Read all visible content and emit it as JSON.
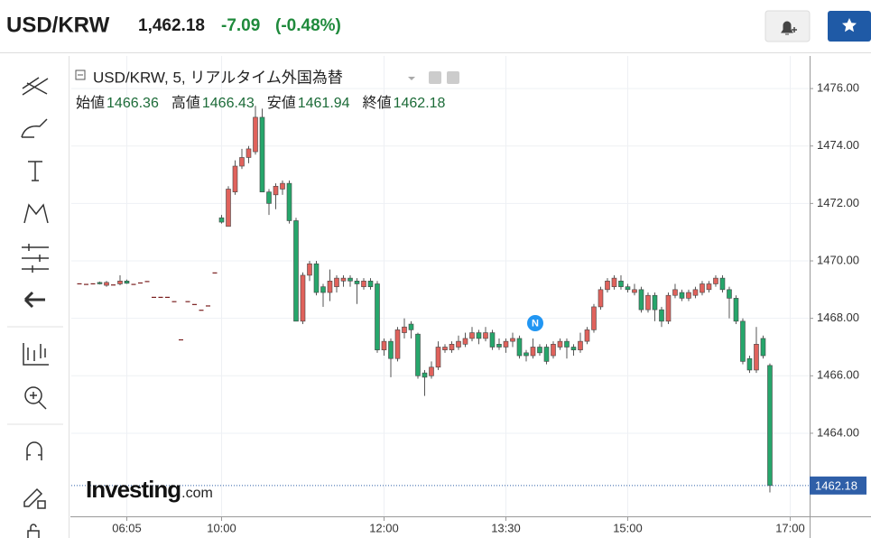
{
  "header": {
    "symbol": "USD/KRW",
    "price": "1,462.18",
    "change": "-7.09",
    "change_pct": "(-0.48%)"
  },
  "watermark": {
    "brand": "Investing",
    "suffix": ".com"
  },
  "news_marker": "N",
  "chart_data": {
    "type": "candlestick",
    "title": "USD/KRW, 5, リアルタイム外国為替",
    "up_color": "#e0625c",
    "down_color": "#26a66b",
    "x": [
      0,
      1,
      2,
      3,
      4,
      5,
      6,
      7,
      8,
      9,
      10,
      11,
      12,
      13,
      14,
      15,
      16,
      17,
      18,
      19,
      20,
      21,
      22,
      23,
      24,
      25,
      26,
      27,
      28,
      29,
      30,
      31,
      32,
      33,
      34,
      35,
      36,
      37,
      38,
      39,
      40,
      41,
      42,
      43,
      44,
      45,
      46,
      47,
      48,
      49,
      50,
      51,
      52,
      53,
      54,
      55,
      56,
      57,
      58,
      59,
      60,
      61,
      62,
      63,
      64,
      65,
      66,
      67,
      68,
      69,
      70,
      71,
      72,
      73,
      74,
      75,
      76,
      77,
      78,
      79,
      80,
      81,
      82,
      83,
      84,
      85,
      86,
      87,
      88,
      89,
      90,
      91,
      92,
      93,
      94,
      95,
      96,
      97,
      98,
      99,
      100,
      101,
      102
    ],
    "xlim": [
      -1.2,
      107.87
    ],
    "xticks": [
      {
        "value": 7,
        "label": "06:05"
      },
      {
        "value": 21,
        "label": "10:00"
      },
      {
        "value": 45,
        "label": "12:00"
      },
      {
        "value": 63,
        "label": "13:30"
      },
      {
        "value": 81,
        "label": "15:00"
      },
      {
        "value": 105,
        "label": "17:00"
      }
    ],
    "ylim": [
      1461.17,
      1477.04
    ],
    "yticks": [
      {
        "value": 1464,
        "label": "1464.00"
      },
      {
        "value": 1466,
        "label": "1466.00"
      },
      {
        "value": 1468,
        "label": "1468.00"
      },
      {
        "value": 1470,
        "label": "1470.00"
      },
      {
        "value": 1472,
        "label": "1472.00"
      },
      {
        "value": 1474,
        "label": "1474.00"
      },
      {
        "value": 1476,
        "label": "1476.00"
      }
    ],
    "grid": true,
    "series": [
      {
        "name": "始値",
        "values": [
          1469.22,
          1469.2,
          1469.22,
          1469.25,
          1469.15,
          1469.18,
          1469.2,
          1469.3,
          1469.2,
          1469.25,
          1469.3,
          1468.75,
          1468.75,
          1468.75,
          1468.6,
          1467.27,
          1468.6,
          1468.5,
          1468.3,
          1468.45,
          1469.6,
          1471.5,
          1471.2,
          1472.4,
          1473.3,
          1473.6,
          1473.8,
          1475.0,
          1472.4,
          1472.3,
          1472.5,
          1472.7,
          1471.4,
          1467.9,
          1469.5,
          1469.9,
          1469.1,
          1468.9,
          1469.1,
          1469.3,
          1469.4,
          1469.3,
          1469.1,
          1469.3,
          1469.2,
          1466.9,
          1467.2,
          1466.6,
          1467.5,
          1467.8,
          1467.45,
          1466.1,
          1466.0,
          1466.3,
          1466.9,
          1466.9,
          1467.0,
          1467.1,
          1467.3,
          1467.5,
          1467.3,
          1467.5,
          1467.1,
          1467.0,
          1467.2,
          1467.3,
          1466.8,
          1466.7,
          1467.0,
          1467.0,
          1466.7,
          1467.0,
          1467.2,
          1467.0,
          1466.9,
          1467.2,
          1467.6,
          1468.4,
          1469.0,
          1469.1,
          1469.3,
          1469.1,
          1468.9,
          1469.0,
          1468.3,
          1468.8,
          1468.3,
          1467.9,
          1468.8,
          1468.9,
          1468.7,
          1468.8,
          1468.9,
          1469.0,
          1469.2,
          1469.4,
          1469.0,
          1468.7,
          1467.9,
          1466.6,
          1466.2,
          1467.3,
          1466.36
        ]
      },
      {
        "name": "高値",
        "values": [
          1469.22,
          1469.2,
          1469.22,
          1469.28,
          1469.3,
          1469.18,
          1469.5,
          1469.35,
          1469.2,
          1469.25,
          1469.3,
          1468.75,
          1468.75,
          1468.75,
          1468.6,
          1467.27,
          1468.6,
          1468.5,
          1468.3,
          1468.45,
          1469.6,
          1471.6,
          1472.6,
          1473.5,
          1473.9,
          1474.0,
          1475.4,
          1475.3,
          1472.5,
          1472.7,
          1472.8,
          1472.8,
          1471.5,
          1469.6,
          1470.0,
          1470.0,
          1469.2,
          1469.7,
          1469.5,
          1469.5,
          1469.5,
          1469.4,
          1469.4,
          1469.4,
          1469.3,
          1467.3,
          1467.3,
          1467.7,
          1468.0,
          1467.9,
          1467.5,
          1466.2,
          1466.5,
          1467.2,
          1467.1,
          1467.2,
          1467.4,
          1467.5,
          1467.7,
          1467.6,
          1467.7,
          1467.6,
          1467.3,
          1467.3,
          1467.5,
          1467.4,
          1466.9,
          1467.3,
          1467.1,
          1467.1,
          1467.2,
          1467.3,
          1467.3,
          1467.1,
          1467.5,
          1467.7,
          1468.5,
          1469.1,
          1469.4,
          1469.5,
          1469.5,
          1469.2,
          1469.2,
          1469.1,
          1468.9,
          1468.9,
          1468.4,
          1468.9,
          1469.2,
          1469.0,
          1469.0,
          1469.1,
          1469.3,
          1469.3,
          1469.5,
          1469.5,
          1469.1,
          1468.8,
          1468.0,
          1466.7,
          1467.7,
          1467.4,
          1466.43
        ]
      },
      {
        "name": "安値",
        "values": [
          1469.22,
          1469.2,
          1469.22,
          1469.18,
          1469.1,
          1469.18,
          1469.15,
          1469.2,
          1469.2,
          1469.25,
          1469.3,
          1468.75,
          1468.75,
          1468.75,
          1468.6,
          1467.27,
          1468.6,
          1468.5,
          1468.3,
          1468.45,
          1469.6,
          1471.3,
          1471.2,
          1472.3,
          1473.2,
          1473.4,
          1473.7,
          1472.4,
          1471.6,
          1471.8,
          1472.3,
          1471.3,
          1467.9,
          1467.8,
          1469.3,
          1468.8,
          1468.4,
          1468.6,
          1468.9,
          1469.1,
          1469.1,
          1468.5,
          1469.0,
          1469.0,
          1466.8,
          1466.7,
          1465.95,
          1466.5,
          1467.3,
          1467.3,
          1465.9,
          1465.3,
          1465.9,
          1466.2,
          1466.8,
          1466.8,
          1466.9,
          1467.0,
          1467.2,
          1467.1,
          1467.2,
          1466.9,
          1466.9,
          1466.8,
          1467.0,
          1466.6,
          1466.5,
          1466.6,
          1466.7,
          1466.4,
          1466.6,
          1466.9,
          1466.6,
          1466.7,
          1466.8,
          1467.1,
          1467.5,
          1468.3,
          1468.9,
          1469.0,
          1469.0,
          1468.9,
          1468.8,
          1468.2,
          1468.2,
          1467.9,
          1467.7,
          1467.8,
          1468.7,
          1468.6,
          1468.6,
          1468.7,
          1468.8,
          1468.9,
          1469.1,
          1468.9,
          1468.0,
          1467.8,
          1466.4,
          1466.1,
          1466.1,
          1466.6,
          1461.94
        ]
      },
      {
        "name": "終値",
        "values": [
          1469.22,
          1469.2,
          1469.22,
          1469.2,
          1469.25,
          1469.18,
          1469.3,
          1469.22,
          1469.2,
          1469.25,
          1469.3,
          1468.75,
          1468.75,
          1468.75,
          1468.6,
          1467.27,
          1468.6,
          1468.5,
          1468.3,
          1468.45,
          1469.6,
          1471.35,
          1472.5,
          1473.3,
          1473.6,
          1473.9,
          1475.0,
          1472.4,
          1472.0,
          1472.6,
          1472.7,
          1471.4,
          1467.9,
          1469.5,
          1469.9,
          1468.9,
          1468.9,
          1469.3,
          1469.4,
          1469.4,
          1469.3,
          1469.2,
          1469.3,
          1469.1,
          1466.9,
          1467.2,
          1466.6,
          1467.6,
          1467.7,
          1467.6,
          1466.0,
          1465.95,
          1466.3,
          1467.0,
          1467.0,
          1467.1,
          1467.2,
          1467.3,
          1467.5,
          1467.3,
          1467.5,
          1467.0,
          1467.0,
          1467.2,
          1467.3,
          1466.7,
          1466.7,
          1467.0,
          1466.8,
          1466.5,
          1467.1,
          1467.2,
          1467.0,
          1466.9,
          1467.2,
          1467.6,
          1468.4,
          1469.0,
          1469.3,
          1469.4,
          1469.1,
          1469.0,
          1469.0,
          1468.3,
          1468.8,
          1468.3,
          1467.9,
          1468.8,
          1469.0,
          1468.7,
          1468.9,
          1469.0,
          1469.2,
          1469.2,
          1469.4,
          1469.0,
          1468.7,
          1467.9,
          1466.5,
          1466.2,
          1467.1,
          1466.7,
          1462.18
        ]
      }
    ]
  }
}
